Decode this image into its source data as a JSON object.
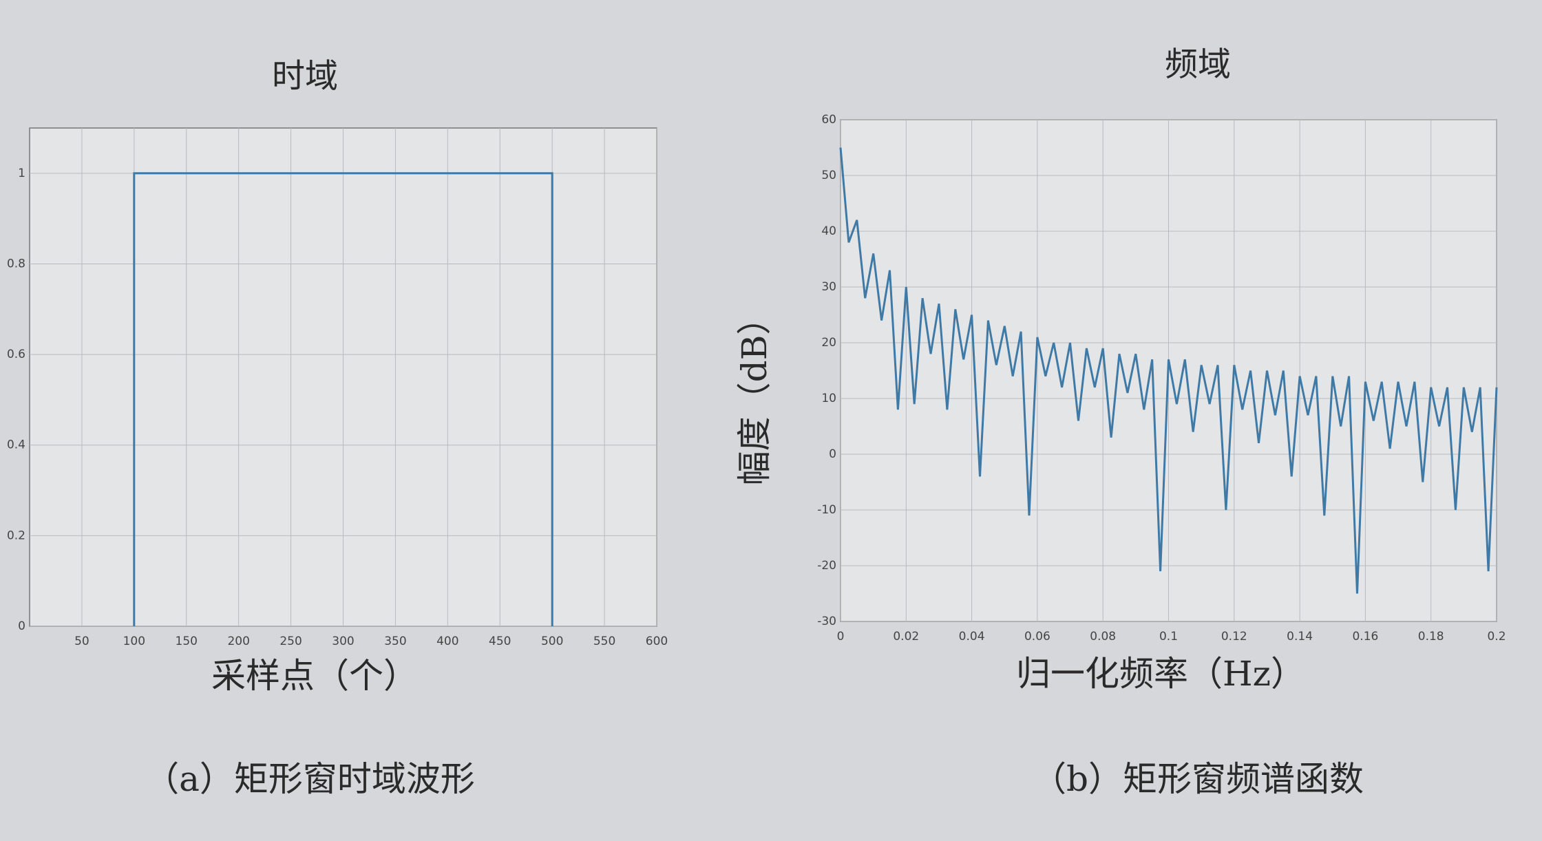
{
  "chart_data": [
    {
      "type": "line",
      "title": "时域",
      "x_label": "采样点（个）",
      "caption": "（a）矩形窗时域波形",
      "x": [
        100,
        100,
        500,
        500
      ],
      "series": [
        {
          "color": "#3f7aa6",
          "values": [
            0,
            1,
            1,
            0
          ]
        }
      ],
      "xlim": [
        0,
        600
      ],
      "xticks": [
        50,
        100,
        150,
        200,
        250,
        300,
        350,
        400,
        450,
        500,
        550,
        600
      ],
      "ylim": [
        0,
        1.1
      ],
      "yticks": [
        0,
        0.2,
        0.4,
        0.6,
        0.8,
        1
      ],
      "grid": true
    },
    {
      "type": "line",
      "title": "频域",
      "x_label": "归一化频率（Hz）",
      "y_label": "幅度（dB）",
      "caption": "（b）矩形窗频谱函数",
      "x": [
        0,
        0.0025,
        0.005,
        0.0075,
        0.01,
        0.0125,
        0.015,
        0.0175,
        0.02,
        0.0225,
        0.025,
        0.0275,
        0.03,
        0.0325,
        0.035,
        0.0375,
        0.04,
        0.0425,
        0.045,
        0.0475,
        0.05,
        0.0525,
        0.055,
        0.0575,
        0.06,
        0.0625,
        0.065,
        0.0675,
        0.07,
        0.0725,
        0.075,
        0.0775,
        0.08,
        0.0825,
        0.085,
        0.0875,
        0.09,
        0.0925,
        0.095,
        0.0975,
        0.1,
        0.1025,
        0.105,
        0.1075,
        0.11,
        0.1125,
        0.115,
        0.1175,
        0.12,
        0.1225,
        0.125,
        0.1275,
        0.13,
        0.1325,
        0.135,
        0.1375,
        0.14,
        0.1425,
        0.145,
        0.1475,
        0.15,
        0.1525,
        0.155,
        0.1575,
        0.16,
        0.1625,
        0.165,
        0.1675,
        0.17,
        0.1725,
        0.175,
        0.1775,
        0.18,
        0.1825,
        0.185,
        0.1875,
        0.19,
        0.1925,
        0.195,
        0.1975,
        0.2
      ],
      "series": [
        {
          "color": "#3f7aa6",
          "values": [
            55,
            38,
            42,
            28,
            36,
            24,
            33,
            8,
            30,
            9,
            28,
            18,
            27,
            8,
            26,
            17,
            25,
            -4,
            24,
            16,
            23,
            14,
            22,
            -11,
            21,
            14,
            20,
            12,
            20,
            6,
            19,
            12,
            19,
            3,
            18,
            11,
            18,
            8,
            17,
            -21,
            17,
            9,
            17,
            4,
            16,
            9,
            16,
            -10,
            16,
            8,
            15,
            2,
            15,
            7,
            15,
            -4,
            14,
            7,
            14,
            -11,
            14,
            5,
            14,
            -25,
            13,
            6,
            13,
            1,
            13,
            5,
            13,
            -5,
            12,
            5,
            12,
            -10,
            12,
            4,
            12,
            -21,
            12
          ]
        }
      ],
      "xlim": [
        0,
        0.2
      ],
      "xticks": [
        0,
        0.02,
        0.04,
        0.06,
        0.08,
        0.1,
        0.12,
        0.14,
        0.16,
        0.18,
        0.2
      ],
      "ylim": [
        -30,
        60
      ],
      "yticks": [
        -30,
        -20,
        -10,
        0,
        10,
        20,
        30,
        40,
        50,
        60
      ],
      "grid": true
    }
  ]
}
